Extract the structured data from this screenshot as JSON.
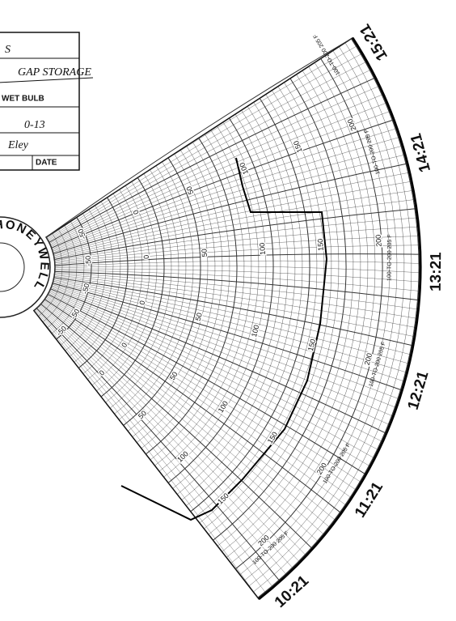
{
  "form": {
    "lines": [
      "S",
      "GAP STORAGE",
      "WET BULB",
      "0-13",
      "Eley"
    ],
    "date_label": "DATE"
  },
  "logo": "©HONEYWELL",
  "time_labels": [
    "10:21",
    "11:21",
    "12:21",
    "13:21",
    "14:21",
    "15:21"
  ],
  "scale_labels": [
    "-50",
    "0",
    "50",
    "100",
    "150",
    "200"
  ],
  "range_note": "100-TO-200 205 F"
}
